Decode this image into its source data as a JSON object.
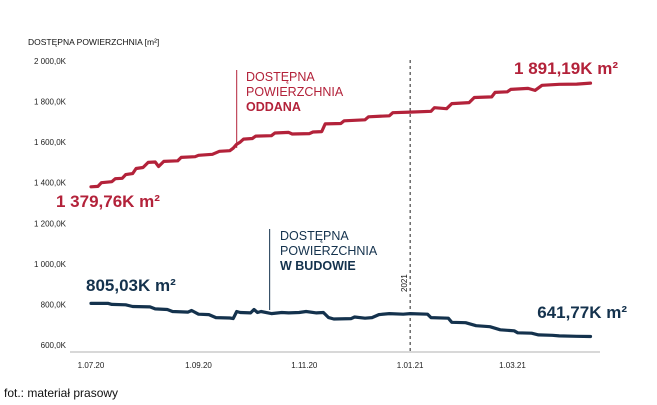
{
  "chart_data": {
    "type": "line",
    "ylabel": "DOSTĘPNA POWIERZCHNIA [m²]",
    "ylim": [
      560,
      2000
    ],
    "y_ticks": [
      {
        "value": 2000,
        "label": "2 000,0K"
      },
      {
        "value": 1800,
        "label": "1 800,0K"
      },
      {
        "value": 1600,
        "label": "1 600,0K"
      },
      {
        "value": 1400,
        "label": "1 400,0K"
      },
      {
        "value": 1200,
        "label": "1 200,0K"
      },
      {
        "value": 1000,
        "label": "1 000,0K"
      },
      {
        "value": 800,
        "label": "800,0K"
      },
      {
        "value": 600,
        "label": "600,0K"
      }
    ],
    "x_ticks": [
      {
        "value": 0,
        "label": "1.07.20"
      },
      {
        "value": 62,
        "label": "1.09.20"
      },
      {
        "value": 123,
        "label": "1.11.20"
      },
      {
        "value": 184,
        "label": "1.01.21"
      },
      {
        "value": 243,
        "label": "1.03.21"
      }
    ],
    "xlim": [
      0,
      290
    ],
    "divider": {
      "x": 184,
      "label": "2021"
    },
    "series": [
      {
        "name": "Dostępna powierzchnia oddana",
        "color": "#b3223a",
        "annotation": [
          "DOSTĘPNA",
          "POWIERZCHNIA",
          "ODDANA"
        ],
        "annotation_x": 84,
        "start_label": "1 379,76K m²",
        "end_label": "1 891,19K m²",
        "points": [
          [
            0,
            1380
          ],
          [
            4,
            1382
          ],
          [
            6,
            1400
          ],
          [
            12,
            1405
          ],
          [
            14,
            1420
          ],
          [
            18,
            1422
          ],
          [
            20,
            1440
          ],
          [
            24,
            1445
          ],
          [
            26,
            1470
          ],
          [
            30,
            1475
          ],
          [
            33,
            1500
          ],
          [
            37,
            1502
          ],
          [
            39,
            1480
          ],
          [
            42,
            1505
          ],
          [
            50,
            1508
          ],
          [
            52,
            1525
          ],
          [
            60,
            1528
          ],
          [
            62,
            1535
          ],
          [
            70,
            1540
          ],
          [
            74,
            1555
          ],
          [
            80,
            1558
          ],
          [
            82,
            1570
          ],
          [
            84,
            1590
          ],
          [
            86,
            1600
          ],
          [
            88,
            1615
          ],
          [
            93,
            1618
          ],
          [
            95,
            1630
          ],
          [
            104,
            1632
          ],
          [
            106,
            1645
          ],
          [
            114,
            1648
          ],
          [
            116,
            1640
          ],
          [
            126,
            1642
          ],
          [
            128,
            1650
          ],
          [
            133,
            1652
          ],
          [
            135,
            1690
          ],
          [
            144,
            1692
          ],
          [
            146,
            1705
          ],
          [
            158,
            1710
          ],
          [
            160,
            1725
          ],
          [
            172,
            1730
          ],
          [
            174,
            1745
          ],
          [
            184,
            1748
          ],
          [
            196,
            1752
          ],
          [
            198,
            1770
          ],
          [
            205,
            1765
          ],
          [
            208,
            1790
          ],
          [
            218,
            1795
          ],
          [
            221,
            1820
          ],
          [
            231,
            1823
          ],
          [
            233,
            1845
          ],
          [
            240,
            1848
          ],
          [
            242,
            1860
          ],
          [
            252,
            1865
          ],
          [
            256,
            1855
          ],
          [
            260,
            1880
          ],
          [
            270,
            1885
          ],
          [
            280,
            1886
          ],
          [
            288,
            1891.19
          ]
        ]
      },
      {
        "name": "Dostępna powierzchnia w budowie",
        "color": "#14324d",
        "annotation": [
          "DOSTĘPNA",
          "POWIERZCHNIA",
          "W BUDOWIE"
        ],
        "annotation_x": 103,
        "start_label": "805,03K m²",
        "end_label": "641,77K m²",
        "points": [
          [
            0,
            805
          ],
          [
            10,
            805
          ],
          [
            12,
            800
          ],
          [
            20,
            798
          ],
          [
            24,
            790
          ],
          [
            34,
            788
          ],
          [
            37,
            778
          ],
          [
            44,
            775
          ],
          [
            47,
            765
          ],
          [
            56,
            762
          ],
          [
            58,
            770
          ],
          [
            62,
            752
          ],
          [
            68,
            750
          ],
          [
            72,
            735
          ],
          [
            80,
            733
          ],
          [
            82,
            730
          ],
          [
            84,
            765
          ],
          [
            86,
            760
          ],
          [
            92,
            758
          ],
          [
            94,
            775
          ],
          [
            96,
            760
          ],
          [
            98,
            765
          ],
          [
            104,
            755
          ],
          [
            110,
            760
          ],
          [
            114,
            758
          ],
          [
            120,
            760
          ],
          [
            124,
            765
          ],
          [
            130,
            758
          ],
          [
            134,
            760
          ],
          [
            137,
            735
          ],
          [
            140,
            728
          ],
          [
            150,
            730
          ],
          [
            152,
            738
          ],
          [
            158,
            732
          ],
          [
            162,
            735
          ],
          [
            166,
            750
          ],
          [
            172,
            755
          ],
          [
            180,
            752
          ],
          [
            184,
            755
          ],
          [
            194,
            752
          ],
          [
            196,
            735
          ],
          [
            206,
            732
          ],
          [
            208,
            712
          ],
          [
            216,
            710
          ],
          [
            222,
            695
          ],
          [
            230,
            690
          ],
          [
            236,
            675
          ],
          [
            244,
            670
          ],
          [
            246,
            660
          ],
          [
            254,
            658
          ],
          [
            258,
            650
          ],
          [
            266,
            648
          ],
          [
            270,
            645
          ],
          [
            280,
            643
          ],
          [
            288,
            641.77
          ]
        ]
      }
    ]
  },
  "caption": "fot.: materiał prasowy"
}
